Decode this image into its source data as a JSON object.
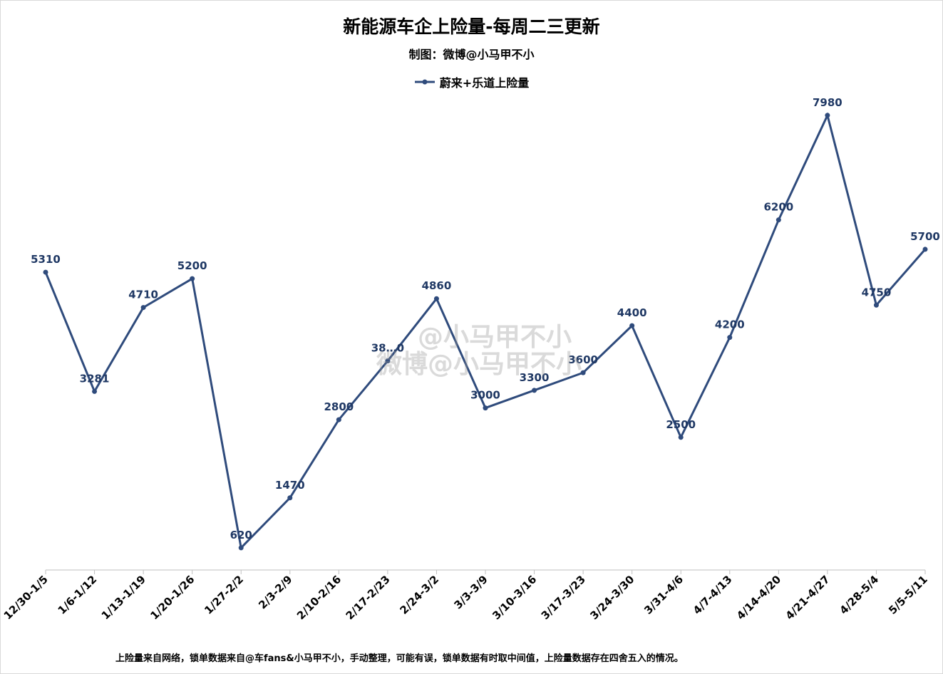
{
  "title": "新能源车企上险量-每周二三更新",
  "subtitle": "制图：微博@小马甲不小",
  "footnote": "上险量来自网络，锁单数据来自@车fans&小马甲不小，手动整理，可能有误，锁单数据有时取中间值，上险量数据存在四舍五入的情况。",
  "watermark": {
    "line1": "@小马甲不小",
    "line2": "微博@小马甲不小"
  },
  "colors": {
    "series": "#2f4b7c",
    "label": "#1f3864",
    "axis": "#bfbfbf"
  },
  "chart_data": {
    "type": "line",
    "title": "新能源车企上险量-每周二三更新",
    "categories": [
      "12/30-1/5",
      "1/6-1/12",
      "1/13-1/19",
      "1/20-1/26",
      "1/27-2/2",
      "2/3-2/9",
      "2/10-2/16",
      "2/17-2/23",
      "2/24-3/2",
      "3/3-3/9",
      "3/10-3/16",
      "3/17-3/23",
      "3/24-3/30",
      "3/31-4/6",
      "4/7-4/13",
      "4/14-4/20",
      "4/21-4/27",
      "4/28-5/4",
      "5/5-5/11"
    ],
    "series": [
      {
        "name": "蔚来+乐道上险量",
        "values": [
          5310,
          3281,
          4710,
          5200,
          620,
          1470,
          2800,
          3800,
          4860,
          3000,
          3300,
          3600,
          4400,
          2500,
          4200,
          6200,
          7980,
          4750,
          5700
        ],
        "labels": [
          "5310",
          "3281",
          "4710",
          "5200",
          "620",
          "1470",
          "2800",
          "38…0",
          "4860",
          "3000",
          "3300",
          "3600",
          "4400",
          "2500",
          "4200",
          "6200",
          "7980",
          "4750",
          "5700"
        ]
      }
    ],
    "ylim": [
      0,
      8500
    ],
    "grid": false,
    "legend": "top-center",
    "xlabel": "",
    "ylabel": ""
  }
}
